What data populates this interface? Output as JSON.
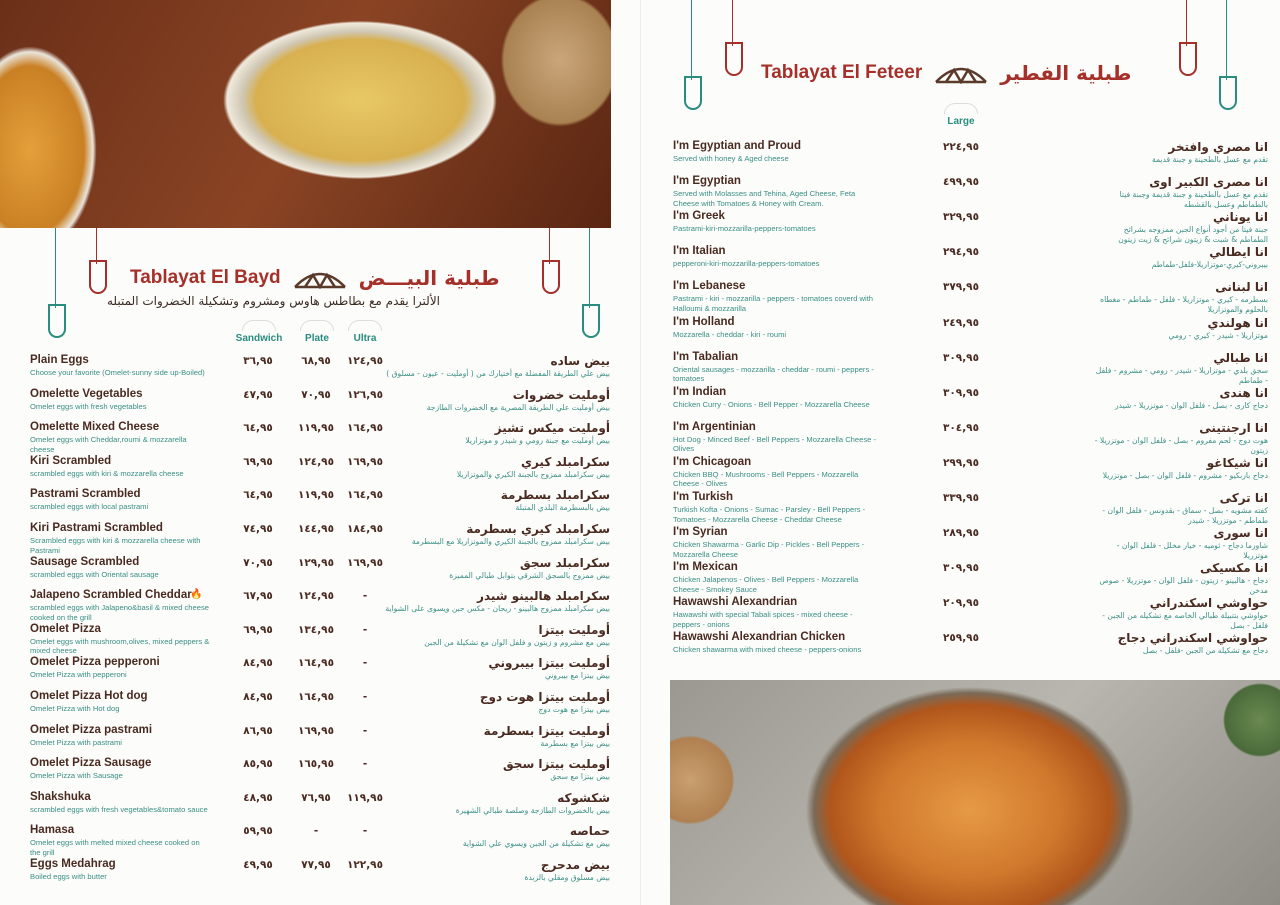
{
  "colors": {
    "title": "#a5302a",
    "name": "#4a2a20",
    "desc": "#3a8f85",
    "accent": "#2a8c7f"
  },
  "bayd": {
    "title_en": "Tablayat El Bayd",
    "title_ar": "طبلية البيـــض",
    "subtitle_ar": "الألترا يقدم مع بطاطس هاوس ومشروم وتشكيلة الخضروات المتبله",
    "columns": [
      "Sandwich",
      "Plate",
      "Ultra"
    ],
    "items": [
      {
        "name": "Plain Eggs",
        "desc": "Choose your favorite (Omelet-sunny side up-Boiled)",
        "prices": [
          "٣٦,٩٥",
          "٦٨,٩٥",
          "١٢٤,٩٥"
        ],
        "ar_name": "بيض ساده",
        "ar_desc": "بيض علي الطريقة المفضلة مع أختيارك من ( أومليت - عيون - مسلوق )"
      },
      {
        "name": "Omelette Vegetables",
        "desc": "Omelet eggs with fresh vegetables",
        "prices": [
          "٤٧,٩٥",
          "٧٠,٩٥",
          "١٢٦,٩٥"
        ],
        "ar_name": "أومليت خضروات",
        "ar_desc": "بيض أومليت علي الطريقة المصرية مع الخضروات الطازجة"
      },
      {
        "name": "Omelette Mixed Cheese",
        "desc": "Omelet eggs with Cheddar,roumi & mozzarella cheese",
        "prices": [
          "٦٤,٩٥",
          "١١٩,٩٥",
          "١٦٤,٩٥"
        ],
        "ar_name": "أومليت ميكس تشيز",
        "ar_desc": "بيض أومليت مع جبنة رومي و شيدر و موتزاريلا"
      },
      {
        "name": "Kiri Scrambled",
        "desc": "scrambled eggs with kiri & mozzarella cheese",
        "prices": [
          "٦٩,٩٥",
          "١٢٤,٩٥",
          "١٦٩,٩٥"
        ],
        "ar_name": "سكرامبلد كيري",
        "ar_desc": "بيض سكرامبلد ممزوج بالجبنة الكيري والموتزاريلا"
      },
      {
        "name": "Pastrami Scrambled",
        "desc": "scrambled eggs with local pastrami",
        "prices": [
          "٦٤,٩٥",
          "١١٩,٩٥",
          "١٦٤,٩٥"
        ],
        "ar_name": "سكرامبلد بسطرمة",
        "ar_desc": "بيض بالبسطرمة البلدي المتبلة"
      },
      {
        "name": "Kiri Pastrami Scrambled",
        "desc": "Scrambled eggs with kiri & mozzarella cheese with  Pastrami",
        "prices": [
          "٧٤,٩٥",
          "١٤٤,٩٥",
          "١٨٤,٩٥"
        ],
        "ar_name": "سكرامبلد كيري بسطرمة",
        "ar_desc": "بيض سكرامبلد ممزوج بالجبنة الكيري والموتزاريلا مع البسطرمة"
      },
      {
        "name": "Sausage Scrambled",
        "desc": "scrambled eggs with Oriental sausage",
        "prices": [
          "٧٠,٩٥",
          "١٢٩,٩٥",
          "١٦٩,٩٥"
        ],
        "ar_name": "سكرامبلد سجق",
        "ar_desc": "بيض ممزوج بالسجق الشرقي بتوابل طبالي المميزة"
      },
      {
        "name": "Jalapeno Scrambled Cheddar",
        "spicy": true,
        "desc": "scrambled eggs with Jalapeno&basil & mixed cheese cooked on the grill",
        "prices": [
          "٦٧,٩٥",
          "١٢٤,٩٥",
          "-"
        ],
        "ar_name": "سكرامبلد هالبينو شيدر",
        "ar_desc": "بيض سكرامبلد ممزوج هالبينو - ريحان - مكس جبن ويسوى على الشواية"
      },
      {
        "name": "Omelet Pizza",
        "desc": "Omelet eggs with mushroom,olives, mixed peppers & mixed cheese",
        "prices": [
          "٦٩,٩٥",
          "١٣٤,٩٥",
          "-"
        ],
        "ar_name": "أومليت بيتزا",
        "ar_desc": "بيض مع مشروم و زيتون و فلفل الوان مع تشكيلة من الجبن"
      },
      {
        "name": "Omelet Pizza pepperoni",
        "desc": "Omelet Pizza with pepperoni",
        "prices": [
          "٨٤,٩٥",
          "١٦٤,٩٥",
          "-"
        ],
        "ar_name": "أومليت بيتزا بيبروني",
        "ar_desc": "بيض بيتزا مع بيبروني"
      },
      {
        "name": "Omelet Pizza Hot dog",
        "desc": "Omelet Pizza with Hot dog",
        "prices": [
          "٨٤,٩٥",
          "١٦٤,٩٥",
          "-"
        ],
        "ar_name": "أومليت بيتزا هوت دوج",
        "ar_desc": "بيض بيتزا مع هوت دوج"
      },
      {
        "name": "Omelet Pizza pastrami",
        "desc": "Omelet Pizza with pastrami",
        "prices": [
          "٨٦,٩٥",
          "١٦٩,٩٥",
          "-"
        ],
        "ar_name": "أومليت بيتزا بسطرمة",
        "ar_desc": "بيض بيتزا مع بسطرمة"
      },
      {
        "name": "Omelet Pizza Sausage",
        "desc": "Omelet Pizza with Sausage",
        "prices": [
          "٨٥,٩٥",
          "١٦٥,٩٥",
          "-"
        ],
        "ar_name": "أومليت بيتزا سجق",
        "ar_desc": "بيض بيتزا مع سجق"
      },
      {
        "name": "Shakshuka",
        "desc": "scrambled eggs with fresh vegetables&tomato sauce",
        "prices": [
          "٤٨,٩٥",
          "٧٦,٩٥",
          "١١٩,٩٥"
        ],
        "ar_name": "شكشوكه",
        "ar_desc": "بيض بالخضروات الطازجة وصلصة طبالي الشهيرة"
      },
      {
        "name": "Hamasa",
        "desc": "Omelet eggs with melted mixed cheese cooked on the grill",
        "prices": [
          "٥٩,٩٥",
          "-",
          "-"
        ],
        "ar_name": "حماصه",
        "ar_desc": "بيض مع تشكيلة من الجبن ويسوي علي الشواية"
      },
      {
        "name": "Eggs Medahrag",
        "desc": "Boiled eggs with butter",
        "prices": [
          "٤٩,٩٥",
          "٧٧,٩٥",
          "١٢٢,٩٥"
        ],
        "ar_name": "بيض مدحرج",
        "ar_desc": "بيض مسلوق ومقلي بالزبدة"
      }
    ]
  },
  "feteer": {
    "title_en": "Tablayat El Feteer",
    "title_ar": "طبلية الفطير",
    "columns": [
      "Large"
    ],
    "items": [
      {
        "name": "I'm Egyptian and Proud",
        "desc": "Served with honey & Aged cheese",
        "price": "٢٢٤,٩٥",
        "ar_name": "انا مصري وافتخر",
        "ar_desc": "تقدم مع عسل بالطحينة و جبنة قديمة"
      },
      {
        "name": "I'm Egyptian",
        "desc": "Served with Molasses and Tehina, Aged Cheese, Feta Cheese with Tomatoes & Honey with Cream.",
        "price": "٤٩٩,٩٥",
        "ar_name": "انا مصرى الكبير اوى",
        "ar_desc": "تقدم مع عسل بالطحينة و جبنة قديمة وجبنة فيتا بالطماطم وعسل بالقشطه"
      },
      {
        "name": "I'm Greek",
        "desc": "Pastrami-kiri-mozzarilla-peppers-tomatoes",
        "price": "٣٢٩,٩٥",
        "ar_name": "انا يوناني",
        "ar_desc": "جبنة فيتا من أجود أنواع الجبن ممزوجه بشرائح الطماطم & شبت & زيتون شرائح & زيت زيتون"
      },
      {
        "name": "I'm Italian",
        "desc": "pepperoni-kiri-mozzarilla-peppers-tomatoes",
        "price": "٢٩٤,٩٥",
        "ar_name": "انا ايطالي",
        "ar_desc": "بيبروني-كيري-موتزاريلا-فلفل-طماطم"
      },
      {
        "name": "I'm Lebanese",
        "desc": "Pastrami - kiri - mozzarilla - peppers - tomatoes coverd with Halloumi & mozzarilla",
        "price": "٣٧٩,٩٥",
        "ar_name": "انا لبنانى",
        "ar_desc": "بسطرمه - كيري - موتزاريلا - فلفل - طماطم - مغطاه بالحلوم والموتزاريلا"
      },
      {
        "name": "I'm Holland",
        "desc": "Mozzarella - cheddar - kiri - roumi",
        "price": "٢٤٩,٩٥",
        "ar_name": "انا هولندي",
        "ar_desc": "موتزاريلا - شيدر - كيري - رومي"
      },
      {
        "name": "I'm Tabalian",
        "desc": "Oriental sausages - mozzarilla - cheddar - roumi - peppers - tomatoes",
        "price": "٣٠٩,٩٥",
        "ar_name": "انا طبالي",
        "ar_desc": "سجق بلدي - موتزاريلا - شيدر - رومي - مشروم - فلفل - طماطم"
      },
      {
        "name": "I'm Indian",
        "desc": "Chicken Curry - Onions - Bell Pepper - Mozzarella Cheese",
        "price": "٣٠٩,٩٥",
        "ar_name": "انا هندى",
        "ar_desc": "دجاج كارى - بصل - فلفل الوان - موتزريلا - شيدر"
      },
      {
        "name": "I'm Argentinian",
        "desc": "Hot Dog - Minced Beef - Bell Peppers - Mozzarella Cheese - Olives",
        "price": "٣٠٤,٩٥",
        "ar_name": "انا ارجنتينى",
        "ar_desc": "هوت دوج - لحم مفروم - بصل - فلفل الوان - موتزريلا - زيتون"
      },
      {
        "name": "I'm Chicagoan",
        "desc": "Chicken BBQ - Mushrooms - Bell Peppers - Mozzarella Cheese - Olives",
        "price": "٢٩٩,٩٥",
        "ar_name": "انا شيكاغو",
        "ar_desc": "دجاج باربكيو - مشروم - فلفل الوان - بصل - موتزريلا"
      },
      {
        "name": "I'm Turkish",
        "desc": "Turkish Kofta - Onions - Sumac - Parsley - Bell Peppers - Tomatoes - Mozzarella Cheese - Cheddar Cheese",
        "price": "٣٣٩,٩٥",
        "ar_name": "انا تركى",
        "ar_desc": "كفته مشويه - بصل - سماق - بقدونس - فلفل الوان - طماطم - موتزريلا - شيدر"
      },
      {
        "name": "I'm Syrian",
        "desc": "Chicken Shawarma - Garlic Dip - Pickles - Bell Peppers - Mozzarella Cheese",
        "price": "٢٨٩,٩٥",
        "ar_name": "انا سورى",
        "ar_desc": "شاورما دجاج - ثوميه - خيار مخلل - فلفل الوان - موتزريلا"
      },
      {
        "name": "I'm Mexican",
        "desc": "Chicken Jalapenos - Olives - Bell Peppers - Mozzarella Cheese - Smokey Sauce",
        "price": "٣٠٩,٩٥",
        "ar_name": "انا مكسيكى",
        "ar_desc": "دجاج - هالبينو - زيتون - فلفل الوان - موتزريلا - صوص مدخن"
      },
      {
        "name": "Hawawshi Alexandrian",
        "desc": "Hawawshi with special Tabali spices - mixed cheese - peppers - onions",
        "price": "٢٠٩,٩٥",
        "ar_name": "حواوشي اسكندراني",
        "ar_desc": "حواوشي بتتبيلة طبالي الخاصه مع تشكيله من الجبن - فلفل - بصل"
      },
      {
        "name": "Hawawshi Alexandrian Chicken",
        "desc": "Chicken shawarma with mixed cheese - peppers-onions",
        "price": "٢٥٩,٩٥",
        "ar_name": "حواوشي اسكندراني دجاج",
        "ar_desc": "دجاج  مع تشكيله من الجبن  -فلفل - بصل"
      }
    ]
  }
}
